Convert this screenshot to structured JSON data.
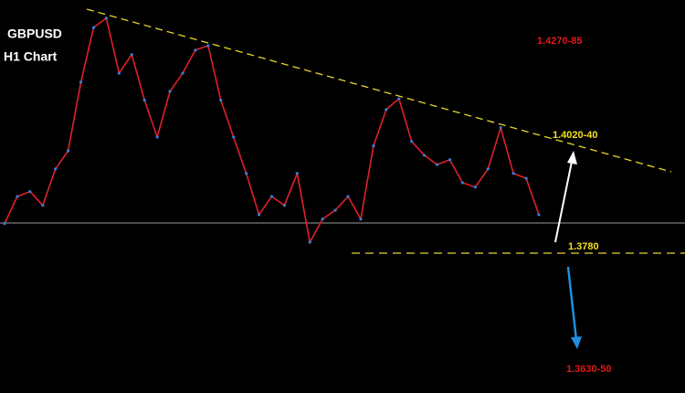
{
  "chart_data": {
    "type": "line",
    "title": "GBPUSD",
    "subtitle": "H1 Chart",
    "annotations": [
      "1.4270-85",
      "1.4020-40",
      "1.3780",
      "1.3630-50"
    ],
    "categories": [
      null,
      null,
      null,
      null,
      null,
      null,
      null,
      null,
      null,
      null,
      null,
      null,
      null,
      null,
      null,
      null,
      null,
      null,
      null,
      null,
      null,
      null,
      null,
      null,
      null,
      null,
      null,
      null,
      null,
      null,
      null,
      null,
      null,
      null,
      null,
      null,
      null,
      null,
      null,
      null,
      null,
      null,
      null
    ],
    "values": [
      1.384,
      1.3895,
      1.3905,
      1.3877,
      1.3951,
      1.3988,
      1.4128,
      1.4239,
      1.4258,
      1.4146,
      1.4184,
      1.4091,
      1.4016,
      1.4109,
      1.4146,
      1.4193,
      1.4202,
      1.4091,
      1.4016,
      1.3942,
      1.3858,
      1.3895,
      1.3877,
      1.3942,
      1.3802,
      1.3849,
      1.3867,
      1.3895,
      1.3849,
      1.3998,
      1.4072,
      1.4094,
      1.4007,
      1.3979,
      1.396,
      1.397,
      1.3923,
      1.3914,
      1.3951,
      1.4035,
      1.3942,
      1.3932,
      1.3858
    ],
    "color": "#e0202c",
    "ylim": [
      1.3495,
      1.4295
    ]
  }
}
